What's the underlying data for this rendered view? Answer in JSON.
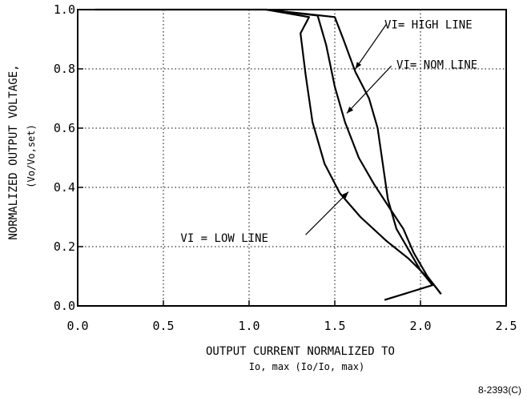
{
  "figure_id": "8-2393(C)",
  "chart_data": {
    "type": "line",
    "xlabel_line1": "OUTPUT  CURRENT  NORMALIZED  TO",
    "xlabel_line2": "Io, max (Io/Io, max)",
    "ylabel_line1": "NORMALIZED  OUTPUT  VOLTAGE,",
    "ylabel_line2": "(Vo/Vo,set)",
    "xlim": [
      0.0,
      2.5
    ],
    "ylim": [
      0.0,
      1.0
    ],
    "x_ticks": [
      "0.0",
      "0.5",
      "1.0",
      "1.5",
      "2.0",
      "2.5"
    ],
    "y_ticks": [
      "0.0",
      "0.2",
      "0.4",
      "0.6",
      "0.8",
      "1.0"
    ],
    "grid": "dotted",
    "series": [
      {
        "name": "VI = HIGH LINE",
        "points": [
          [
            0.1,
            1.0
          ],
          [
            1.1,
            1.0
          ],
          [
            1.5,
            0.975
          ],
          [
            1.55,
            0.9
          ],
          [
            1.62,
            0.79
          ],
          [
            1.7,
            0.7
          ],
          [
            1.75,
            0.6
          ],
          [
            1.78,
            0.48
          ],
          [
            1.81,
            0.36
          ],
          [
            1.86,
            0.26
          ],
          [
            1.93,
            0.19
          ],
          [
            2.0,
            0.12
          ],
          [
            2.08,
            0.07
          ],
          [
            2.12,
            0.04
          ]
        ]
      },
      {
        "name": "VI = NOM LINE",
        "points": [
          [
            1.1,
            1.0
          ],
          [
            1.4,
            0.98
          ],
          [
            1.45,
            0.88
          ],
          [
            1.5,
            0.74
          ],
          [
            1.56,
            0.62
          ],
          [
            1.64,
            0.5
          ],
          [
            1.73,
            0.41
          ],
          [
            1.82,
            0.33
          ],
          [
            1.9,
            0.26
          ],
          [
            1.96,
            0.18
          ],
          [
            2.04,
            0.1
          ],
          [
            2.12,
            0.04
          ]
        ]
      },
      {
        "name": "VI = LOW LINE",
        "points": [
          [
            1.1,
            1.0
          ],
          [
            1.35,
            0.975
          ],
          [
            1.3,
            0.92
          ],
          [
            1.33,
            0.78
          ],
          [
            1.37,
            0.62
          ],
          [
            1.44,
            0.48
          ],
          [
            1.53,
            0.38
          ],
          [
            1.65,
            0.3
          ],
          [
            1.8,
            0.22
          ],
          [
            1.93,
            0.16
          ],
          [
            2.0,
            0.12
          ],
          [
            2.07,
            0.07
          ],
          [
            1.79,
            0.02
          ]
        ]
      }
    ],
    "annotations": [
      {
        "label": "VI= HIGH LINE",
        "text_x": 1.79,
        "text_y": 0.95,
        "arrow_from": [
          1.8,
          0.95
        ],
        "arrow_to": [
          1.62,
          0.8
        ]
      },
      {
        "label": "VI= NOM LINE",
        "text_x": 1.86,
        "text_y": 0.815,
        "arrow_from": [
          1.83,
          0.81
        ],
        "arrow_to": [
          1.57,
          0.65
        ]
      },
      {
        "label": "VI = LOW LINE",
        "text_x": 0.6,
        "text_y": 0.23,
        "arrow_from": [
          1.33,
          0.24
        ],
        "arrow_to": [
          1.58,
          0.385
        ]
      }
    ]
  }
}
